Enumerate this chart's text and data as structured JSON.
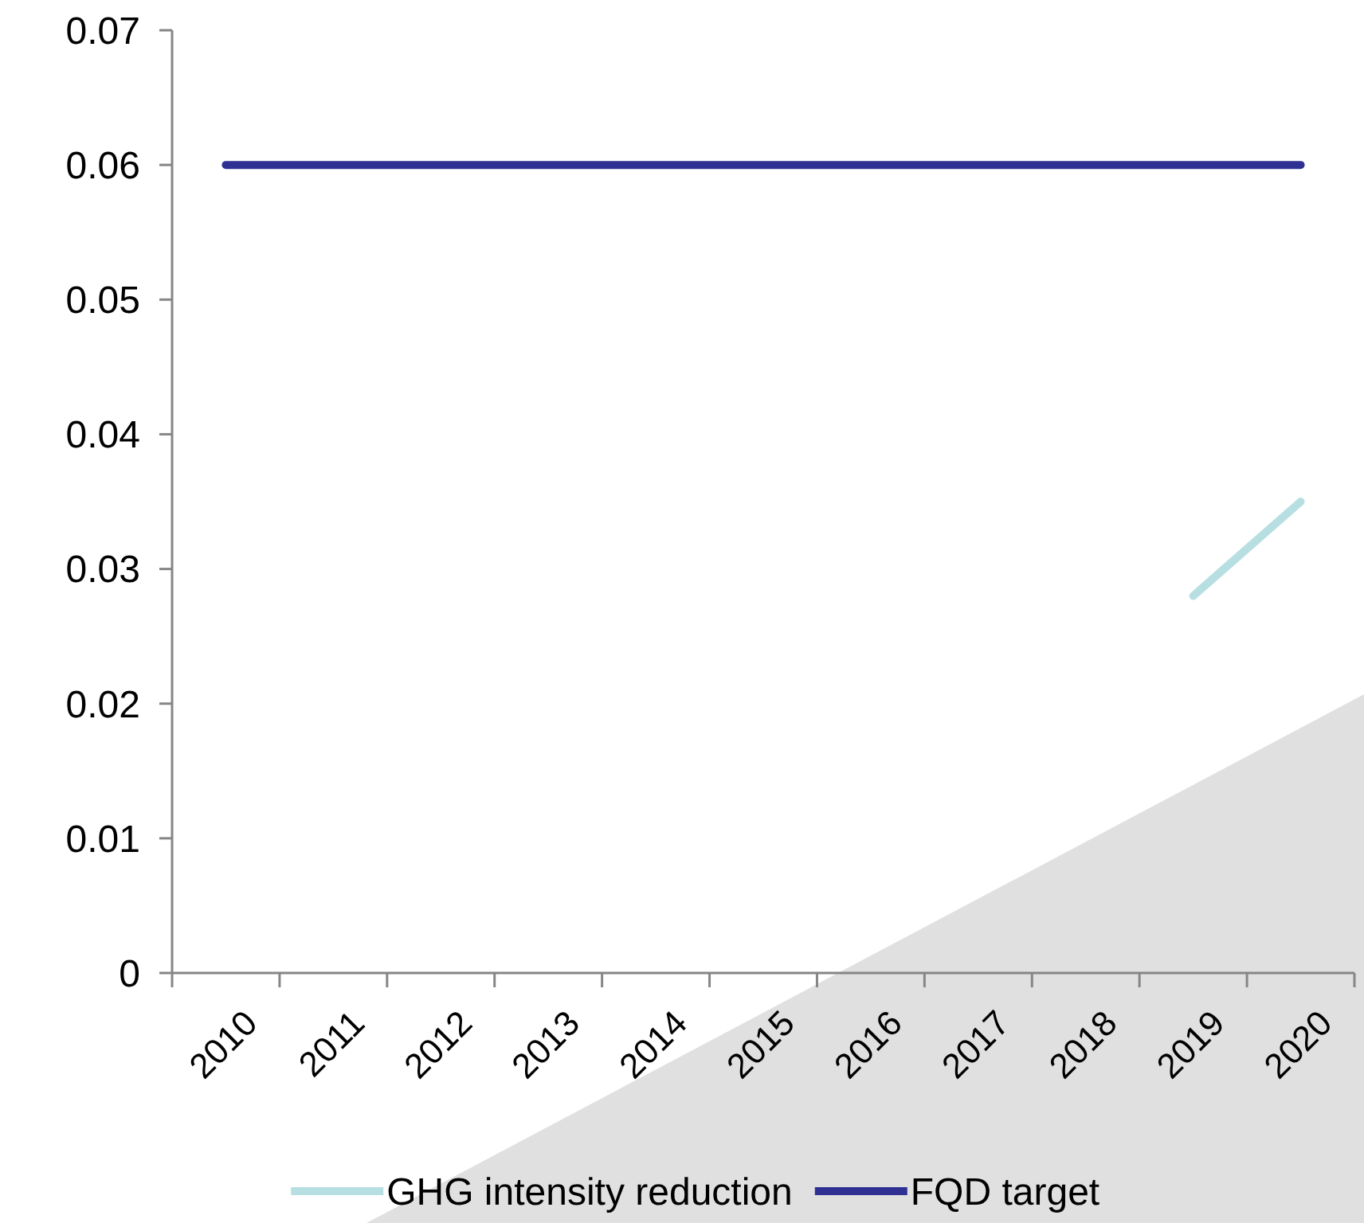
{
  "chart_data": {
    "type": "line",
    "categories": [
      "2010",
      "2011",
      "2012",
      "2013",
      "2014",
      "2015",
      "2016",
      "2017",
      "2018",
      "2019",
      "2020"
    ],
    "series": [
      {
        "name": "GHG intensity reduction",
        "color": "#b7dfe2",
        "values": [
          null,
          null,
          null,
          null,
          null,
          null,
          null,
          null,
          null,
          0.028,
          0.035
        ]
      },
      {
        "name": "FQD target",
        "color": "#2e3192",
        "values": [
          0.06,
          0.06,
          0.06,
          0.06,
          0.06,
          0.06,
          0.06,
          0.06,
          0.06,
          0.06,
          0.06
        ]
      }
    ],
    "ylim": [
      0,
      0.07
    ],
    "yticks": [
      0,
      0.01,
      0.02,
      0.03,
      0.04,
      0.05,
      0.06,
      0.07
    ],
    "grid": false,
    "legend": "bottom",
    "marker": "none",
    "line_style": "solid"
  }
}
